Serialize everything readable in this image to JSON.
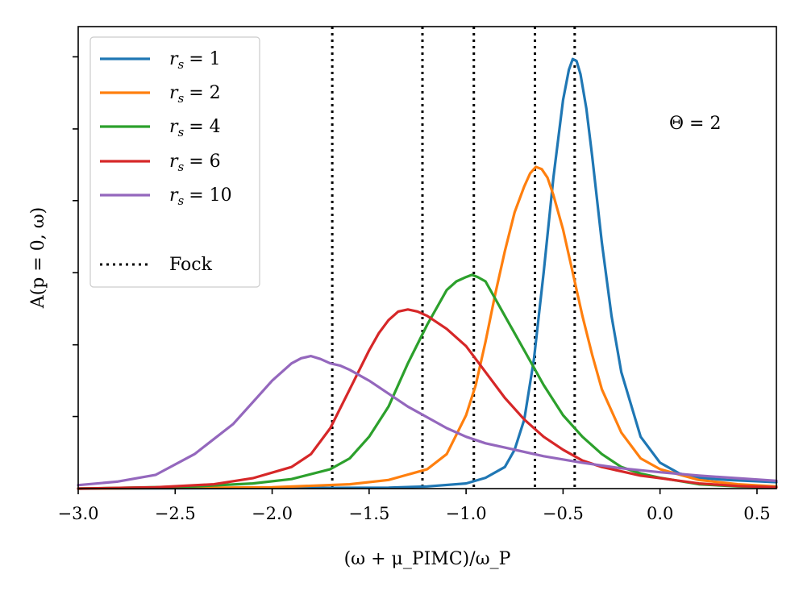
{
  "chart_data": {
    "type": "line",
    "title": "",
    "xlabel": "(ω + μ_PIMC)/ω_P",
    "ylabel": "A(p = 0, ω)",
    "xlim": [
      -3.0,
      0.6
    ],
    "ylim": [
      0.0,
      1.07
    ],
    "x_ticks": [
      -3.0,
      -2.5,
      -2.0,
      -1.5,
      -1.0,
      -0.5,
      0.0,
      0.5
    ],
    "x_tick_labels": [
      "−3.0",
      "−2.5",
      "−2.0",
      "−1.5",
      "−1.0",
      "−0.5",
      "0.0",
      "0.5"
    ],
    "y_ticks": [
      0.167,
      0.333,
      0.5,
      0.667,
      0.833,
      1.0
    ],
    "y_tick_labels": [
      "",
      "",
      "",
      "",
      "",
      ""
    ],
    "annotation": "Θ = 2",
    "series": [
      {
        "name": "r_s = 1",
        "label_var": "r",
        "label_sub": "s",
        "label_val": "= 1",
        "color": "#1f77b4",
        "x": [
          -3.0,
          -1.4,
          -1.2,
          -1.0,
          -0.9,
          -0.8,
          -0.75,
          -0.7,
          -0.65,
          -0.6,
          -0.55,
          -0.5,
          -0.47,
          -0.45,
          -0.43,
          -0.41,
          -0.38,
          -0.35,
          -0.3,
          -0.25,
          -0.2,
          -0.1,
          0.0,
          0.1,
          0.2,
          0.35,
          0.6
        ],
        "y": [
          0.0,
          0.002,
          0.005,
          0.012,
          0.025,
          0.05,
          0.09,
          0.16,
          0.3,
          0.5,
          0.72,
          0.9,
          0.97,
          0.995,
          0.99,
          0.96,
          0.88,
          0.77,
          0.57,
          0.4,
          0.27,
          0.12,
          0.06,
          0.035,
          0.025,
          0.02,
          0.015
        ]
      },
      {
        "name": "r_s = 2",
        "label_var": "r",
        "label_sub": "s",
        "label_val": "= 2",
        "color": "#ff7f0e",
        "x": [
          -3.0,
          -2.0,
          -1.6,
          -1.4,
          -1.2,
          -1.1,
          -1.0,
          -0.95,
          -0.9,
          -0.85,
          -0.8,
          -0.75,
          -0.7,
          -0.67,
          -0.64,
          -0.61,
          -0.58,
          -0.55,
          -0.5,
          -0.45,
          -0.4,
          -0.35,
          -0.3,
          -0.2,
          -0.1,
          0.0,
          0.2,
          0.4,
          0.6
        ],
        "y": [
          0.0,
          0.003,
          0.01,
          0.02,
          0.045,
          0.08,
          0.17,
          0.24,
          0.34,
          0.45,
          0.55,
          0.64,
          0.7,
          0.73,
          0.745,
          0.74,
          0.72,
          0.68,
          0.6,
          0.5,
          0.4,
          0.31,
          0.23,
          0.13,
          0.07,
          0.045,
          0.02,
          0.01,
          0.005
        ]
      },
      {
        "name": "r_s = 4",
        "label_var": "r",
        "label_sub": "s",
        "label_val": "= 4",
        "color": "#2ca02c",
        "x": [
          -3.0,
          -2.4,
          -2.1,
          -1.9,
          -1.7,
          -1.6,
          -1.5,
          -1.4,
          -1.3,
          -1.2,
          -1.1,
          -1.05,
          -1.0,
          -0.97,
          -0.94,
          -0.9,
          -0.85,
          -0.8,
          -0.7,
          -0.6,
          -0.5,
          -0.4,
          -0.3,
          -0.2,
          -0.1,
          0.0,
          0.2,
          0.4,
          0.6
        ],
        "y": [
          0.0,
          0.005,
          0.012,
          0.022,
          0.045,
          0.07,
          0.12,
          0.19,
          0.29,
          0.38,
          0.46,
          0.48,
          0.49,
          0.495,
          0.49,
          0.48,
          0.44,
          0.4,
          0.32,
          0.24,
          0.17,
          0.12,
          0.08,
          0.05,
          0.035,
          0.025,
          0.01,
          0.005,
          0.003
        ]
      },
      {
        "name": "r_s = 6",
        "label_var": "r",
        "label_sub": "s",
        "label_val": "= 6",
        "color": "#d62728",
        "x": [
          -3.0,
          -2.6,
          -2.3,
          -2.1,
          -1.9,
          -1.8,
          -1.7,
          -1.6,
          -1.5,
          -1.45,
          -1.4,
          -1.35,
          -1.3,
          -1.25,
          -1.2,
          -1.1,
          -1.0,
          -0.9,
          -0.8,
          -0.7,
          -0.6,
          -0.5,
          -0.4,
          -0.3,
          -0.2,
          -0.1,
          0.0,
          0.2,
          0.4,
          0.6
        ],
        "y": [
          0.0,
          0.003,
          0.01,
          0.024,
          0.05,
          0.08,
          0.14,
          0.23,
          0.32,
          0.36,
          0.39,
          0.41,
          0.415,
          0.41,
          0.4,
          0.37,
          0.33,
          0.27,
          0.21,
          0.16,
          0.12,
          0.09,
          0.065,
          0.05,
          0.04,
          0.03,
          0.024,
          0.012,
          0.006,
          0.003
        ]
      },
      {
        "name": "r_s = 10",
        "label_var": "r",
        "label_sub": "s",
        "label_val": "= 10",
        "color": "#9467bd",
        "x": [
          -3.0,
          -2.8,
          -2.6,
          -2.4,
          -2.2,
          -2.1,
          -2.0,
          -1.9,
          -1.85,
          -1.8,
          -1.75,
          -1.7,
          -1.65,
          -1.6,
          -1.5,
          -1.4,
          -1.3,
          -1.2,
          -1.1,
          -1.0,
          -0.9,
          -0.8,
          -0.6,
          -0.4,
          -0.2,
          0.0,
          0.2,
          0.4,
          0.6
        ],
        "y": [
          0.008,
          0.016,
          0.032,
          0.08,
          0.15,
          0.2,
          0.25,
          0.29,
          0.302,
          0.307,
          0.3,
          0.29,
          0.285,
          0.275,
          0.25,
          0.22,
          0.19,
          0.165,
          0.14,
          0.12,
          0.105,
          0.095,
          0.075,
          0.06,
          0.047,
          0.038,
          0.03,
          0.024,
          0.018
        ]
      }
    ],
    "fock": {
      "name": "Fock",
      "style": "dotted",
      "color": "#000000",
      "x_positions": [
        -1.69,
        -1.225,
        -0.96,
        -0.645,
        -0.44
      ]
    }
  }
}
